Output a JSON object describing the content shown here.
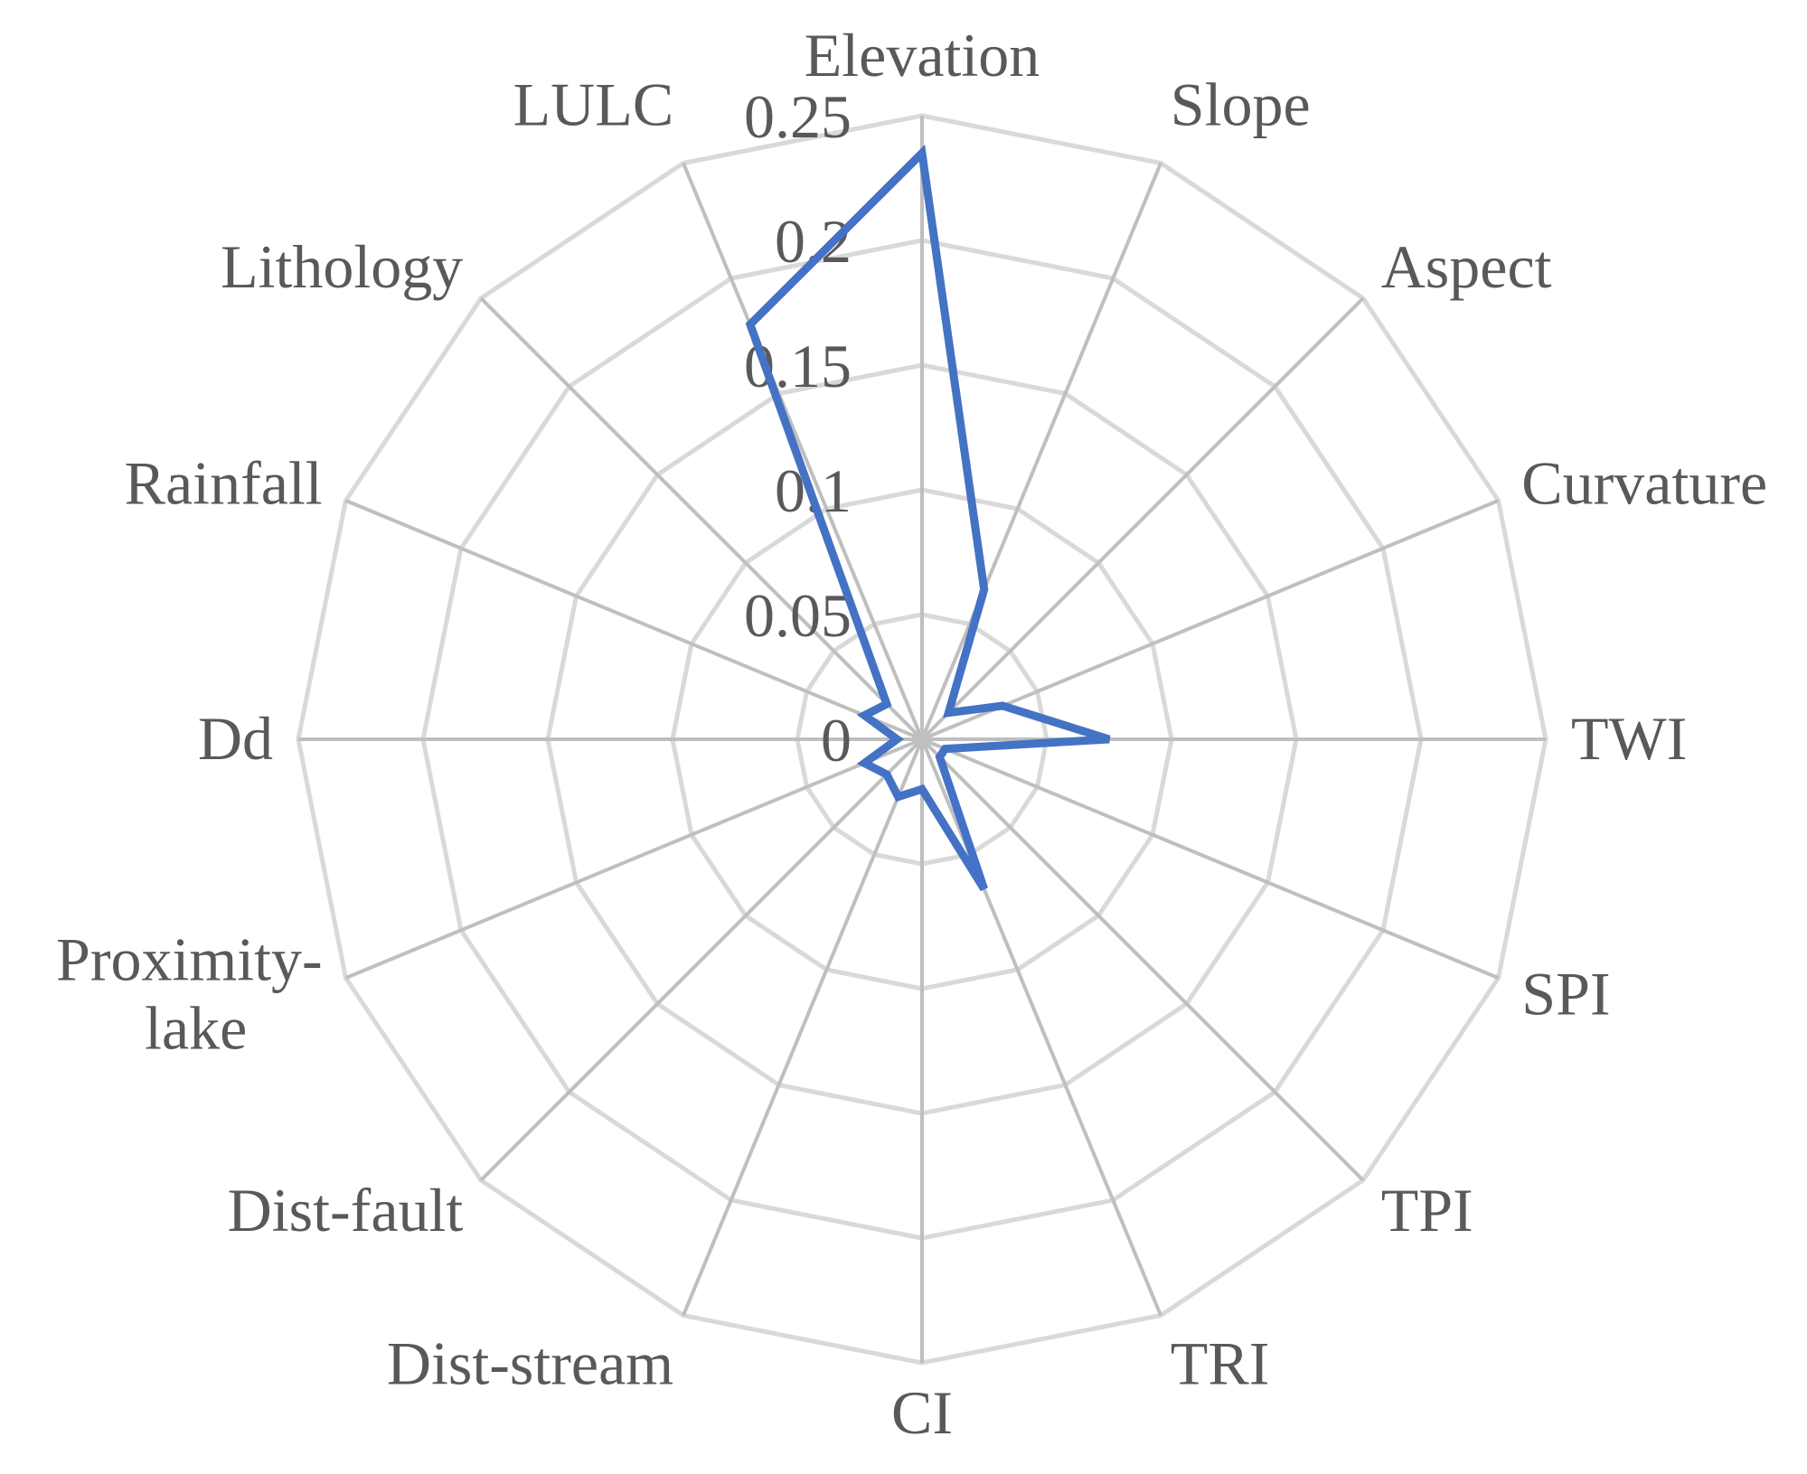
{
  "chart_data": {
    "type": "radar",
    "categories": [
      "Elevation",
      "Slope",
      "Aspect",
      "Curvature",
      "TWI",
      "SPI",
      "TPI",
      "TRI",
      "CI",
      "Dist-stream",
      "Dist-fault",
      "Proximity-lake",
      "Dd",
      "Rainfall",
      "Lithology",
      "LULC"
    ],
    "category_lines": {
      "Proximity-lake": [
        "Proximity-",
        "lake"
      ]
    },
    "series": [
      {
        "values": [
          0.235,
          0.065,
          0.015,
          0.035,
          0.075,
          0.01,
          0.01,
          0.065,
          0.02,
          0.025,
          0.02,
          0.025,
          0.01,
          0.025,
          0.02,
          0.18
        ]
      }
    ],
    "radial_axis": {
      "min": 0,
      "max": 0.25,
      "ticks": [
        "0",
        "0.05",
        "0.1",
        "0.15",
        "0.2",
        "0.25"
      ]
    },
    "colors": {
      "series": "#4472c4",
      "grid": "#d9d9d9",
      "spokes": "#bfbfbf",
      "text": "#595959"
    },
    "legend": "none"
  }
}
